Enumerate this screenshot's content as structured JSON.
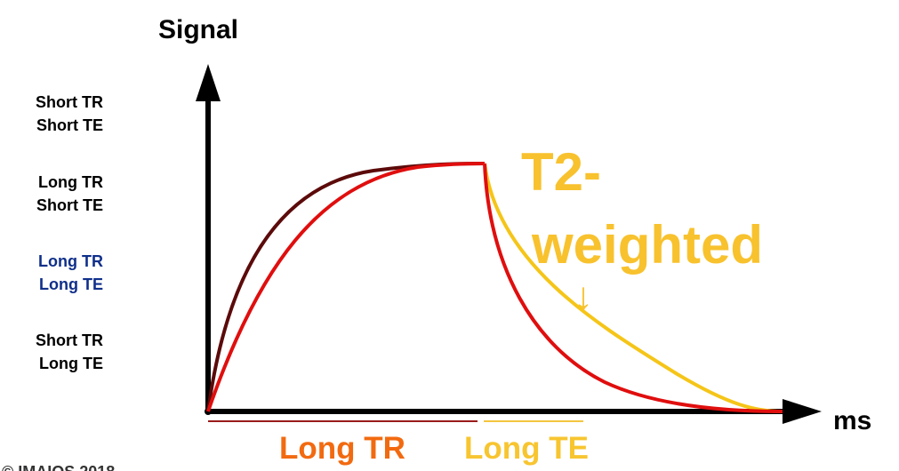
{
  "chart": {
    "y_axis_label": "Signal",
    "x_axis_label": "ms",
    "title_line1": "T2-",
    "title_line2": "weighted",
    "arrow_glyph": "↓",
    "tr_label": "Long TR",
    "te_label": "Long TE",
    "copyright": "© IMAIOS 2018"
  },
  "legend": {
    "items": [
      {
        "line1": "Short TR",
        "line2": "Short TE",
        "color": "#000000"
      },
      {
        "line1": "Long TR",
        "line2": "Short TE",
        "color": "#000000"
      },
      {
        "line1": "Long TR",
        "line2": "Long TE",
        "color": "#0f2f8a"
      },
      {
        "line1": "Short TR",
        "line2": "Long TE",
        "color": "#000000"
      }
    ]
  },
  "colors": {
    "axis": "#000000",
    "dark_red": "#5c0a0a",
    "red": "#e00e0e",
    "yellow": "#f5c518",
    "title_yellow": "#f8c22e",
    "orange": "#f26a10",
    "te_yellow": "#f7c530",
    "tr_underline": "#9b1b1b",
    "te_underline": "#f3c640"
  }
}
